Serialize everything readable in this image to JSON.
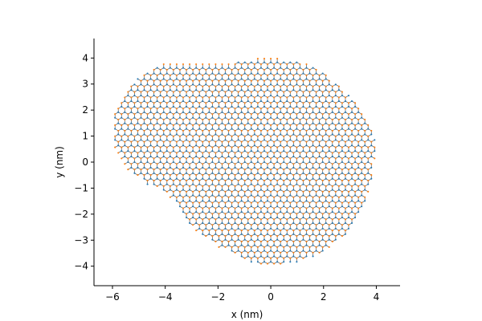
{
  "chart_data": {
    "type": "scatter",
    "title": "",
    "xlabel": "x (nm)",
    "ylabel": "y (nm)",
    "xlim": [
      -6.7,
      4.9
    ],
    "ylim": [
      -4.75,
      4.75
    ],
    "xticks": [
      -6,
      -4,
      -2,
      0,
      2,
      4
    ],
    "xtick_labels": [
      "−6",
      "−4",
      "−2",
      "0",
      "2",
      "4"
    ],
    "yticks": [
      -4,
      -3,
      -2,
      -1,
      0,
      1,
      2,
      3,
      4
    ],
    "ytick_labels": [
      "−4",
      "−3",
      "−2",
      "−1",
      "0",
      "1",
      "2",
      "3",
      "4"
    ],
    "grid": false,
    "legend": false,
    "lattice": {
      "kind": "honeycomb",
      "bond_length_nm": 0.142,
      "sublattices": [
        "A",
        "B"
      ]
    },
    "boundary": [
      [
        -0.5,
        3.98
      ],
      [
        0.4,
        3.98
      ],
      [
        1.4,
        3.78
      ],
      [
        2.1,
        3.35
      ],
      [
        2.7,
        2.85
      ],
      [
        3.2,
        2.35
      ],
      [
        3.6,
        1.75
      ],
      [
        3.9,
        1.1
      ],
      [
        4.0,
        0.4
      ],
      [
        3.85,
        -0.5
      ],
      [
        3.7,
        -1.2
      ],
      [
        3.4,
        -1.95
      ],
      [
        3.0,
        -2.65
      ],
      [
        2.4,
        -3.15
      ],
      [
        1.7,
        -3.6
      ],
      [
        1.0,
        -3.85
      ],
      [
        0.2,
        -3.95
      ],
      [
        -0.5,
        -3.92
      ],
      [
        -1.2,
        -3.7
      ],
      [
        -2.0,
        -3.25
      ],
      [
        -2.8,
        -2.7
      ],
      [
        -3.4,
        -2.05
      ],
      [
        -3.75,
        -1.45
      ],
      [
        -4.1,
        -1.1
      ],
      [
        -4.7,
        -0.85
      ],
      [
        -5.3,
        -0.45
      ],
      [
        -5.75,
        0.15
      ],
      [
        -6.0,
        0.8
      ],
      [
        -6.0,
        1.6
      ],
      [
        -5.75,
        2.4
      ],
      [
        -5.25,
        3.05
      ],
      [
        -4.6,
        3.55
      ],
      [
        -4.0,
        3.8
      ],
      [
        -3.0,
        3.82
      ],
      [
        -1.8,
        3.8
      ],
      [
        -1.0,
        3.85
      ]
    ],
    "series": [
      {
        "values": [],
        "color": "#1f77b4"
      },
      {
        "values": [],
        "color": "#ff7f0e"
      }
    ],
    "bond_color": "#555555"
  }
}
